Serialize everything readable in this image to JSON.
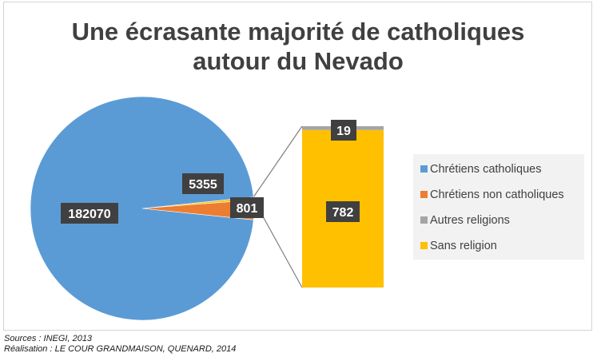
{
  "chart_data": {
    "type": "pie",
    "subtype": "bar-of-pie",
    "title_lines": [
      "Une écrasante majorité de catholiques",
      "autour du Nevado"
    ],
    "pie": {
      "slices": [
        {
          "name": "Chrétiens catholiques",
          "value": 182070,
          "label": "182070",
          "color": "#5b9bd5"
        },
        {
          "name": "Chrétiens non catholiques",
          "value": 5355,
          "label": "5355",
          "color": "#ed7d31"
        },
        {
          "name": "",
          "value": 801,
          "label": "801",
          "color": "#ffc000"
        }
      ]
    },
    "bar": {
      "segments": [
        {
          "name": "Sans religion",
          "value": 782,
          "label": "782",
          "color": "#ffc000"
        },
        {
          "name": "Autres religions",
          "value": 19,
          "label": "19",
          "color": "#a5a5a5"
        }
      ]
    },
    "legend": {
      "position": "right",
      "items": [
        {
          "label": "Chrétiens catholiques",
          "color": "#5b9bd5"
        },
        {
          "label": "Chrétiens non catholiques",
          "color": "#ed7d31"
        },
        {
          "label": "Autres religions",
          "color": "#a5a5a5"
        },
        {
          "label": "Sans religion",
          "color": "#ffc000"
        }
      ]
    },
    "connector_color": "#808080"
  },
  "credits": {
    "sources": "Sources : INEGI, 2013",
    "realisation": "Réalisation : LE COUR GRANDMAISON, QUENARD, 2014"
  }
}
